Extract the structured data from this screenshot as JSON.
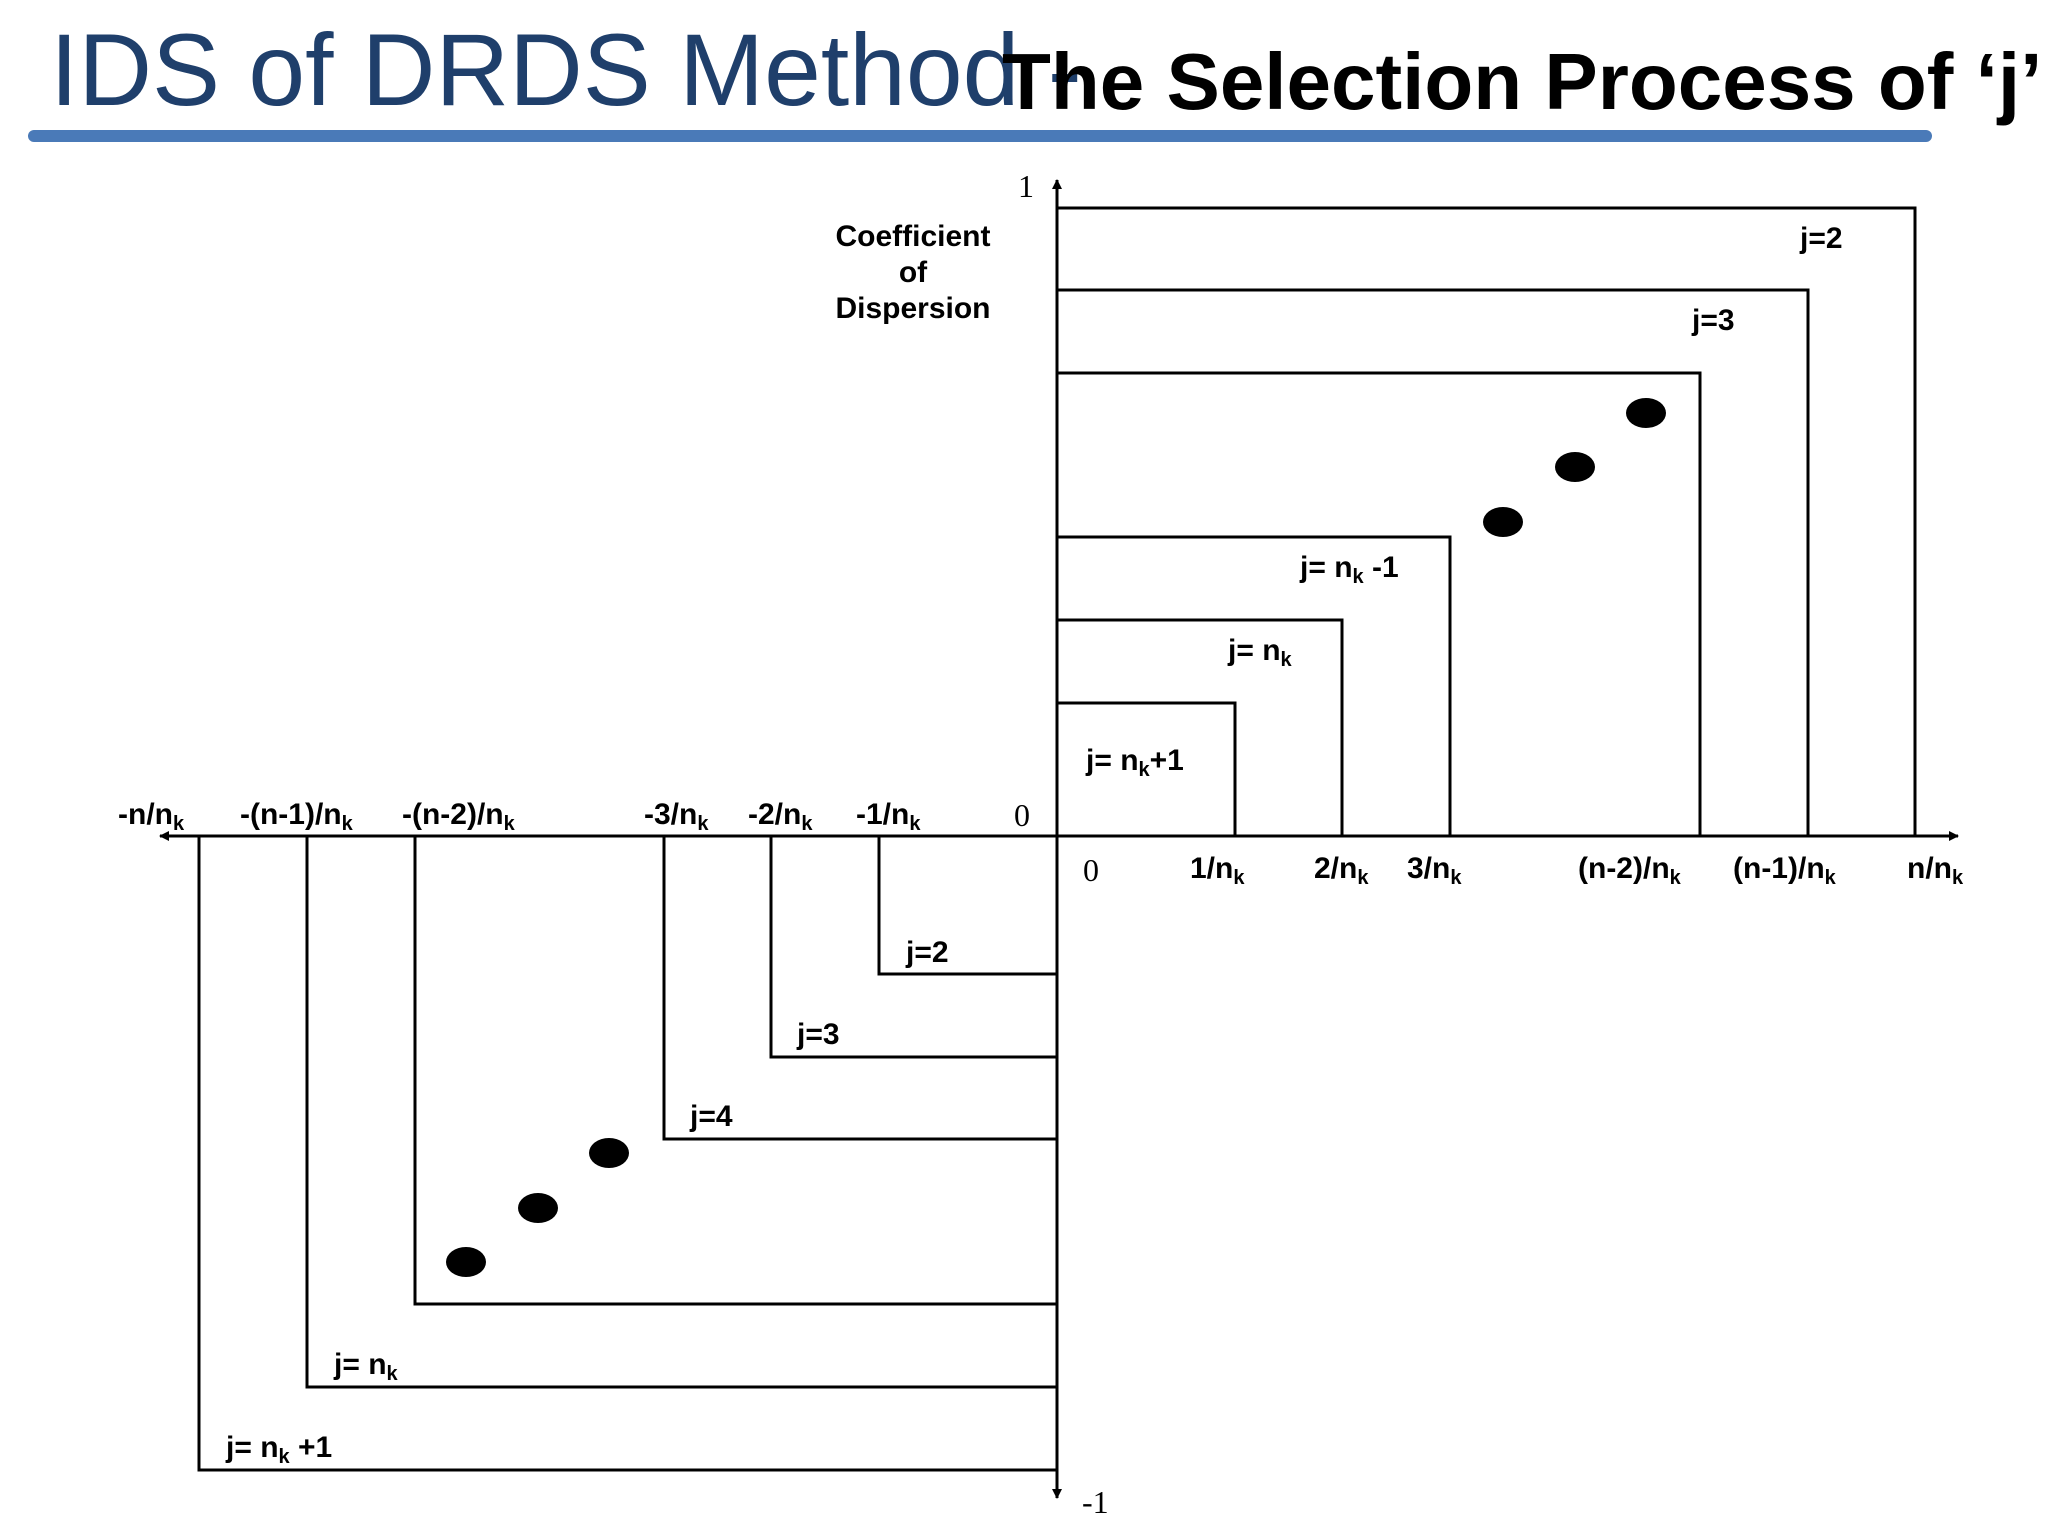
{
  "slide": {
    "title": "IDS of DRDS Method -",
    "subtitle": "The Selection Process of ‘j’",
    "accent_color": "#4a7ab8",
    "title_color": "#1f3f6b"
  },
  "diagram": {
    "y_axis_label": [
      "Coefficient",
      "of",
      "Dispersion"
    ],
    "y_axis_top": "1",
    "y_axis_bottom": "-1",
    "origin_upper": "0",
    "origin_lower": "0",
    "positive_ticks": [
      "1/n",
      "2/n",
      "3/n",
      "(n-2)/n",
      "(n-1)/n",
      "n/n"
    ],
    "negative_ticks": [
      "-1/n",
      "-2/n",
      "-3/n",
      "-(n-2)/n",
      "-(n-1)/n",
      "-n/n"
    ],
    "subscript": "k",
    "upper_boxes": [
      {
        "prefix": "j=",
        "suffix": "2"
      },
      {
        "prefix": "j=",
        "suffix": "3"
      },
      {
        "prefix": "j= n",
        "suffix": " -1"
      },
      {
        "prefix": "j= n",
        "suffix": ""
      },
      {
        "prefix": "j= n",
        "suffix": "+1"
      }
    ],
    "lower_boxes": [
      {
        "prefix": "j=",
        "suffix": "2"
      },
      {
        "prefix": "j=",
        "suffix": "3"
      },
      {
        "prefix": "j=",
        "suffix": "4"
      },
      {
        "prefix": "j= n",
        "suffix": ""
      },
      {
        "prefix": "j= n",
        "suffix": " +1"
      }
    ]
  }
}
